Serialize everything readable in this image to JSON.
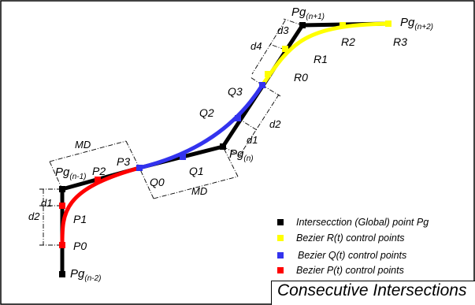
{
  "title": "Consecutive Intersections",
  "colors": {
    "intersection": "#000000",
    "bezier_r": "#ffff00",
    "bezier_q": "#3333ee",
    "bezier_p": "#ff0000",
    "frame": "#000000"
  },
  "legend": [
    {
      "color": "#000000",
      "label": "Intersecction (Global) point Pg"
    },
    {
      "color": "#ffff00",
      "label": "Bezier R(t) control points"
    },
    {
      "color": "#3333ee",
      "label": "Bezier Q(t) control points"
    },
    {
      "color": "#ff0000",
      "label": "Bezier P(t) control points"
    }
  ],
  "labels": {
    "pg_n_minus_2": {
      "base": "Pg",
      "sub": "(n-2)"
    },
    "pg_n_minus_1": {
      "base": "Pg",
      "sub": "(n-1)"
    },
    "pg_n": {
      "base": "Pg",
      "sub": "(n)"
    },
    "pg_n_plus_1": {
      "base": "Pg",
      "sub": "(n+1)"
    },
    "pg_n_plus_2": {
      "base": "Pg",
      "sub": "(n+2)"
    },
    "p0": "P0",
    "p1": "P1",
    "p2": "P2",
    "p3": "P3",
    "q0": "Q0",
    "q1": "Q1",
    "q2": "Q2",
    "q3": "Q3",
    "r0": "R0",
    "r1": "R1",
    "r2": "R2",
    "r3": "R3",
    "d1_left": "d1",
    "d2_left": "d2",
    "md_top": "MD",
    "md_bottom": "MD",
    "d1_mid": "d1",
    "d2_mid": "d2",
    "d3_top": "d3",
    "d4_top": "d4"
  }
}
